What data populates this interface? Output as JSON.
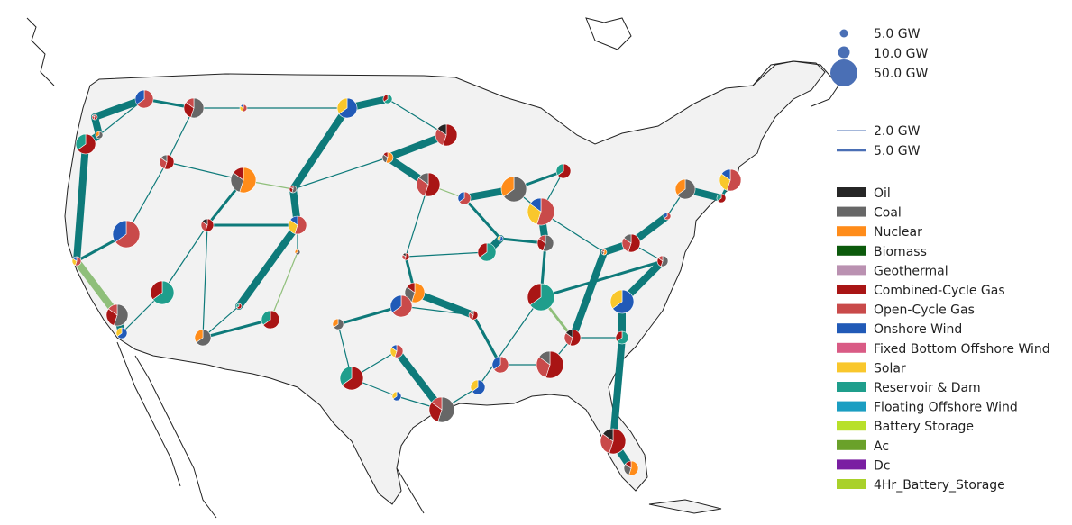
{
  "map": {
    "colors": {
      "land": "#f2f2f2",
      "coast": "#222222",
      "state_border": "#ffffff",
      "ac_line": "#0e7a7a",
      "dc_line": "#8fbf7a",
      "bus_marker": "#4a6fb5"
    }
  },
  "legend": {
    "bus_sizes": [
      {
        "label": "5.0 GW",
        "value": 5.0
      },
      {
        "label": "10.0 GW",
        "value": 10.0
      },
      {
        "label": "50.0 GW",
        "value": 50.0
      }
    ],
    "line_widths": [
      {
        "label": "2.0 GW",
        "value": 2.0
      },
      {
        "label": "5.0 GW",
        "value": 5.0
      }
    ],
    "carriers": [
      {
        "label": "Oil",
        "color": "#262626"
      },
      {
        "label": "Coal",
        "color": "#676767"
      },
      {
        "label": "Nuclear",
        "color": "#ff8c1a"
      },
      {
        "label": "Biomass",
        "color": "#0c5a0c"
      },
      {
        "label": "Geothermal",
        "color": "#ba91b1"
      },
      {
        "label": "Combined-Cycle Gas",
        "color": "#a91515"
      },
      {
        "label": "Open-Cycle Gas",
        "color": "#c94a4a"
      },
      {
        "label": "Onshore Wind",
        "color": "#215ab7"
      },
      {
        "label": "Fixed Bottom Offshore Wind",
        "color": "#d95b85"
      },
      {
        "label": "Solar",
        "color": "#f9c72c"
      },
      {
        "label": "Reservoir & Dam",
        "color": "#1f9e8c"
      },
      {
        "label": "Floating Offshore Wind",
        "color": "#1b9ec2"
      },
      {
        "label": "Battery Storage",
        "color": "#b8e02a"
      },
      {
        "label": "Ac",
        "color": "#6aa12a"
      },
      {
        "label": "Dc",
        "color": "#7a1fa2"
      },
      {
        "label": "4Hr_Battery_Storage",
        "color": "#a9d12a"
      }
    ]
  }
}
